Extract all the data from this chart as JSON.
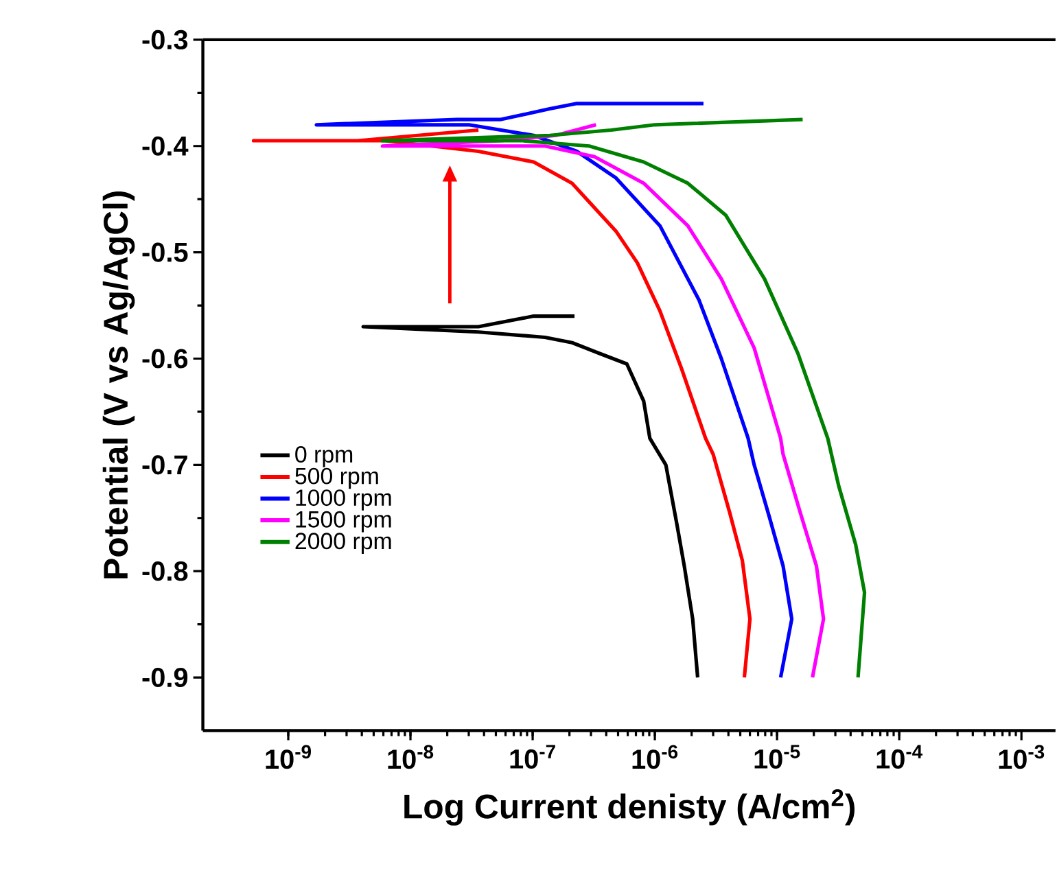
{
  "chart_data": {
    "type": "line",
    "xlabel": "Log Current denisty (A/cm$^{2}$)",
    "ylabel": "Potential (V vs Ag/AgCl)",
    "log": "x",
    "xlim": [
      2e-10,
      0.0019
    ],
    "ylim": [
      -0.95,
      -0.3
    ],
    "xticks": [
      {
        "value": 1e-09,
        "label": "10$^{-9}$"
      },
      {
        "value": 1e-08,
        "label": "10$^{-8}$"
      },
      {
        "value": 1e-07,
        "label": "10$^{-7}$"
      },
      {
        "value": 1e-06,
        "label": "10$^{-6}$"
      },
      {
        "value": 1e-05,
        "label": "10$^{-5}$"
      },
      {
        "value": 0.0001,
        "label": "10$^{-4}$"
      },
      {
        "value": 0.001,
        "label": "10$^{-3}$"
      }
    ],
    "yticks": [
      -0.3,
      -0.4,
      -0.5,
      -0.6,
      -0.7,
      -0.8,
      -0.9
    ],
    "legend": "bottom left",
    "grid": false,
    "marker": "none",
    "line_style": "solid",
    "series": [
      {
        "name": "0 rpm",
        "color": "#000000",
        "x": [
          2.24e-06,
          2.04e-06,
          1.74e-06,
          1.51e-06,
          1.23e-06,
          9.1e-07,
          8.1e-07,
          5.9e-07,
          3.5e-07,
          2.1e-07,
          1.26e-07,
          3.6e-08,
          4.1e-09,
          3.6e-08,
          1.02e-07,
          2.2e-07
        ],
        "values": [
          -0.9,
          -0.845,
          -0.795,
          -0.755,
          -0.7,
          -0.675,
          -0.64,
          -0.605,
          -0.595,
          -0.585,
          -0.58,
          -0.575,
          -0.57,
          -0.57,
          -0.56,
          -0.56
        ]
      },
      {
        "name": "500 rpm",
        "color": "#ff0000",
        "x": [
          5.4e-06,
          6e-06,
          5.2e-06,
          4.1e-06,
          3e-06,
          2.6e-06,
          1.66e-06,
          1.1e-06,
          7.2e-07,
          4.8e-07,
          2.1e-07,
          1.02e-07,
          3.6e-08,
          6.2e-09,
          5.2e-10,
          3.7e-09,
          3.6e-08
        ],
        "values": [
          -0.9,
          -0.845,
          -0.79,
          -0.745,
          -0.69,
          -0.675,
          -0.61,
          -0.555,
          -0.51,
          -0.48,
          -0.435,
          -0.415,
          -0.405,
          -0.395,
          -0.395,
          -0.395,
          -0.385
        ]
      },
      {
        "name": "1000 rpm",
        "color": "#0000ff",
        "x": [
          1.07e-05,
          1.32e-05,
          1.12e-05,
          8.7e-06,
          6.5e-06,
          5.8e-06,
          3.5e-06,
          2.3e-06,
          1.1e-06,
          4.8e-07,
          2.3e-07,
          1.02e-07,
          3e-08,
          1.7e-09,
          2.4e-08,
          5.5e-08,
          1.38e-07,
          2.3e-07,
          2.5e-06
        ],
        "values": [
          -0.9,
          -0.845,
          -0.795,
          -0.75,
          -0.7,
          -0.675,
          -0.6,
          -0.545,
          -0.475,
          -0.43,
          -0.405,
          -0.39,
          -0.38,
          -0.38,
          -0.375,
          -0.375,
          -0.365,
          -0.36,
          -0.36
        ]
      },
      {
        "name": "1500 rpm",
        "color": "#ff00ff",
        "x": [
          1.95e-05,
          2.4e-05,
          2.1e-05,
          1.55e-05,
          1.12e-05,
          1.07e-05,
          6.5e-06,
          3.5e-06,
          1.86e-06,
          8.1e-07,
          3.2e-07,
          1.26e-07,
          5.9e-09,
          5.5e-08,
          1.55e-07,
          3.3e-07
        ],
        "values": [
          -0.9,
          -0.845,
          -0.795,
          -0.745,
          -0.69,
          -0.675,
          -0.59,
          -0.525,
          -0.475,
          -0.435,
          -0.41,
          -0.4,
          -0.4,
          -0.395,
          -0.39,
          -0.38
        ]
      },
      {
        "name": "2000 rpm",
        "color": "#008000",
        "x": [
          4.6e-05,
          5.2e-05,
          4.4e-05,
          3.2e-05,
          2.6e-05,
          1.48e-05,
          7.9e-06,
          3.8e-06,
          1.86e-06,
          8.1e-07,
          2.9e-07,
          8.3e-08,
          5.9e-09,
          1.38e-07,
          4.4e-07,
          1e-06,
          1.62e-05
        ],
        "values": [
          -0.9,
          -0.82,
          -0.775,
          -0.72,
          -0.675,
          -0.595,
          -0.525,
          -0.465,
          -0.435,
          -0.415,
          -0.4,
          -0.395,
          -0.395,
          -0.39,
          -0.385,
          -0.38,
          -0.375
        ]
      }
    ]
  }
}
